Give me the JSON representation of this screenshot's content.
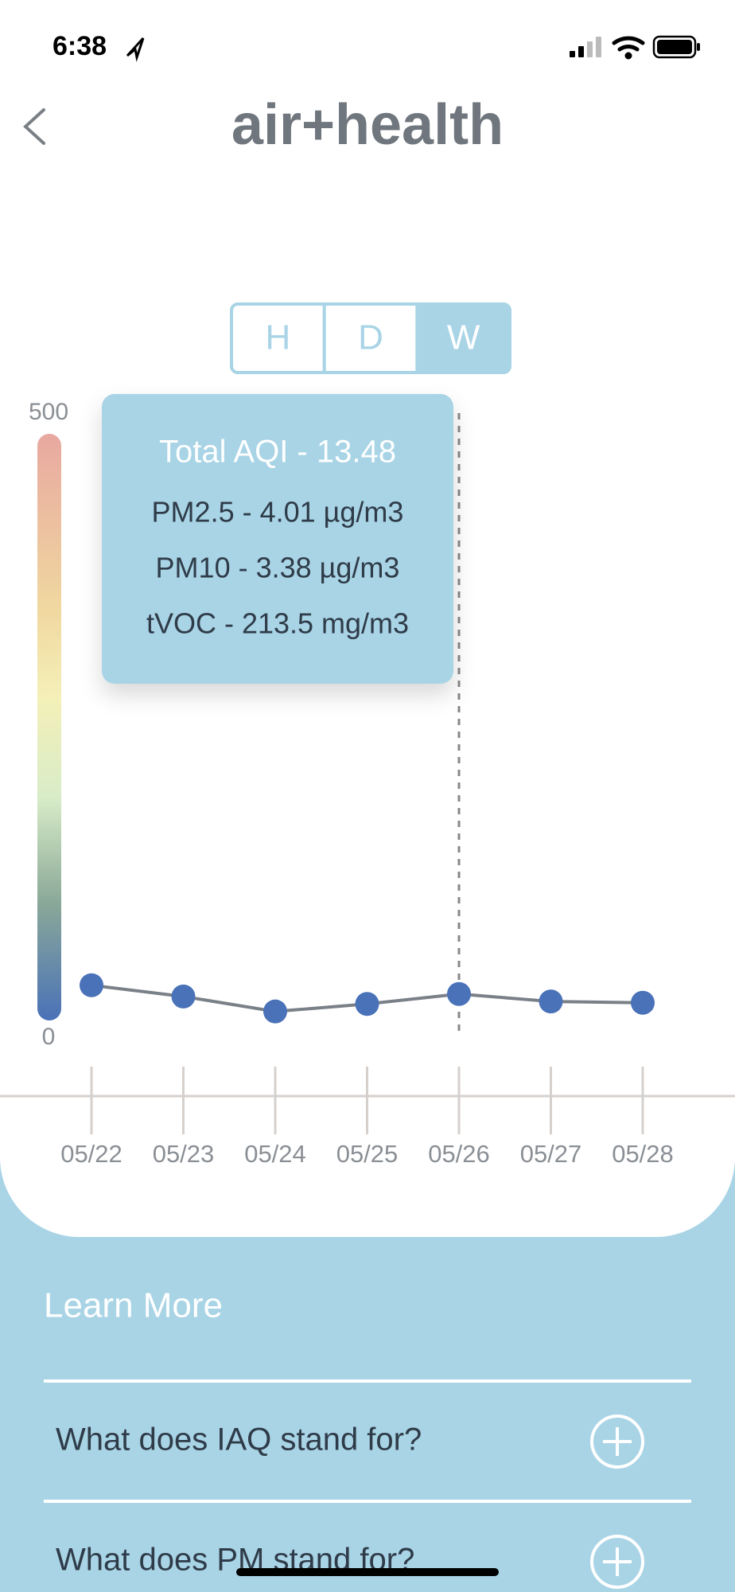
{
  "status_bar": {
    "time": "6:38"
  },
  "header": {
    "logo": "air+health"
  },
  "range_toggle": {
    "options": [
      "H",
      "D",
      "W"
    ],
    "selected": 2
  },
  "chart_data": {
    "type": "line",
    "categories": [
      "05/22",
      "05/23",
      "05/24",
      "05/25",
      "05/26",
      "05/27",
      "05/28"
    ],
    "values": [
      41,
      32,
      20,
      26,
      34,
      28,
      27
    ],
    "color": "#4a72b8",
    "line_color": "#7a8088",
    "ylim": [
      0,
      500
    ],
    "yticks": [
      0,
      500
    ]
  },
  "tooltip": {
    "lines": [
      "Total AQI - 13.48",
      "PM2.5 - 4.01 µg/m3",
      "PM10 - 3.38 µg/m3",
      "tVOC - 213.5 mg/m3"
    ]
  },
  "learn_more": {
    "title": "Learn More",
    "questions": [
      "What does IAQ stand for?",
      "What does PM stand for?"
    ]
  }
}
